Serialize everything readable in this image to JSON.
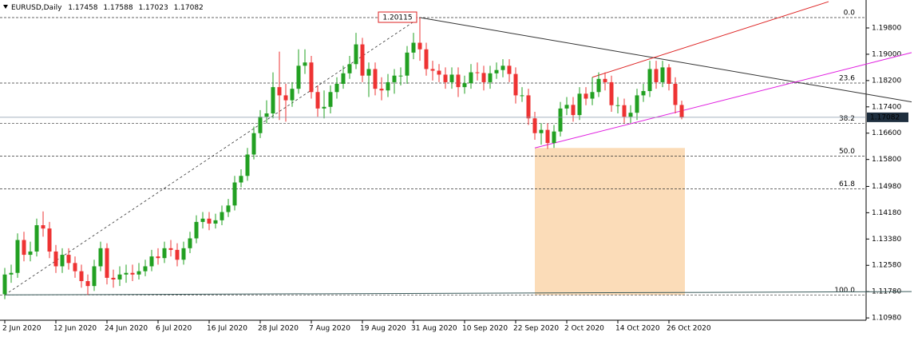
{
  "chart_data": {
    "type": "candlestick",
    "title": "EURUSD,Daily",
    "categories": [
      "2 Jun 2020",
      null,
      null,
      null,
      null,
      null,
      null,
      null,
      "12 Jun 2020",
      null,
      null,
      null,
      null,
      null,
      null,
      null,
      "24 Jun 2020",
      null,
      null,
      null,
      null,
      null,
      null,
      null,
      "6 Jul 2020",
      null,
      null,
      null,
      null,
      null,
      null,
      null,
      "16 Jul 2020",
      null,
      null,
      null,
      null,
      null,
      null,
      null,
      "28 Jul 2020",
      null,
      null,
      null,
      null,
      null,
      null,
      null,
      "7 Aug 2020",
      null,
      null,
      null,
      null,
      null,
      null,
      null,
      "19 Aug 2020",
      null,
      null,
      null,
      null,
      null,
      null,
      null,
      "31 Aug 2020",
      null,
      null,
      null,
      null,
      null,
      null,
      null,
      "10 Sep 2020",
      null,
      null,
      null,
      null,
      null,
      null,
      null,
      "22 Sep 2020",
      null,
      null,
      null,
      null,
      null,
      null,
      null,
      "2 Oct 2020",
      null,
      null,
      null,
      null,
      null,
      null,
      null,
      "14 Oct 2020",
      null,
      null,
      null,
      null,
      null,
      null,
      null,
      "26 Oct 2020",
      null,
      null
    ],
    "open": [
      1.117,
      1.123,
      1.1235,
      1.1335,
      1.129,
      1.13,
      1.138,
      1.137,
      1.13,
      1.1255,
      1.129,
      1.1265,
      1.124,
      1.121,
      1.1195,
      1.1255,
      1.131,
      1.122,
      1.1215,
      1.123,
      1.1235,
      1.123,
      1.124,
      1.1255,
      1.1285,
      1.128,
      1.131,
      1.1305,
      1.1275,
      1.131,
      1.134,
      1.139,
      1.14,
      1.1385,
      1.1395,
      1.142,
      1.144,
      1.151,
      1.153,
      1.1595,
      1.166,
      1.171,
      1.172,
      1.18,
      1.1775,
      1.176,
      1.1795,
      1.1865,
      1.1875,
      1.1785,
      1.1735,
      1.174,
      1.1785,
      1.181,
      1.1842,
      1.187,
      1.193,
      1.1835,
      1.1855,
      1.1795,
      1.179,
      1.1815,
      1.1835,
      1.1835,
      1.1905,
      1.1935,
      1.1915,
      1.1855,
      1.185,
      1.1838,
      1.1815,
      1.1838,
      1.18,
      1.1812,
      1.1845,
      1.1843,
      1.1815,
      1.1842,
      1.1852,
      1.1865,
      1.184,
      1.1775,
      1.1775,
      1.1705,
      1.166,
      1.167,
      1.163,
      1.1665,
      1.1735,
      1.1746,
      1.1715,
      1.178,
      1.1765,
      1.1785,
      1.1825,
      1.1815,
      1.1745,
      1.1745,
      1.171,
      1.1722,
      1.1775,
      1.1788,
      1.1855,
      1.1815,
      1.186,
      1.181,
      1.17458
    ],
    "high": [
      1.125,
      1.126,
      1.1355,
      1.136,
      1.133,
      1.14,
      1.1422,
      1.139,
      1.132,
      1.131,
      1.131,
      1.1285,
      1.126,
      1.123,
      1.1275,
      1.133,
      1.1325,
      1.1245,
      1.1255,
      1.126,
      1.126,
      1.1265,
      1.1275,
      1.1305,
      1.131,
      1.133,
      1.1335,
      1.1325,
      1.133,
      1.136,
      1.141,
      1.142,
      1.142,
      1.1415,
      1.144,
      1.146,
      1.153,
      1.155,
      1.1615,
      1.168,
      1.173,
      1.176,
      1.1845,
      1.1908,
      1.181,
      1.1815,
      1.1915,
      1.1915,
      1.1895,
      1.1805,
      1.179,
      1.1805,
      1.183,
      1.1865,
      1.1895,
      1.1965,
      1.195,
      1.1875,
      1.1875,
      1.183,
      1.184,
      1.1855,
      1.186,
      1.1925,
      1.1965,
      1.20115,
      1.1935,
      1.188,
      1.187,
      1.186,
      1.186,
      1.186,
      1.1835,
      1.187,
      1.1875,
      1.1865,
      1.1865,
      1.1875,
      1.1885,
      1.1885,
      1.186,
      1.18,
      1.1795,
      1.1725,
      1.169,
      1.169,
      1.1685,
      1.1755,
      1.177,
      1.177,
      1.18,
      1.18,
      1.183,
      1.1845,
      1.1845,
      1.1835,
      1.177,
      1.1765,
      1.1745,
      1.1795,
      1.181,
      1.188,
      1.188,
      1.188,
      1.187,
      1.183,
      1.17588
    ],
    "low": [
      1.1155,
      1.1205,
      1.122,
      1.127,
      1.127,
      1.1285,
      1.1345,
      1.128,
      1.1235,
      1.1235,
      1.1245,
      1.122,
      1.119,
      1.1168,
      1.118,
      1.124,
      1.12,
      1.119,
      1.1195,
      1.1205,
      1.121,
      1.1215,
      1.1225,
      1.124,
      1.126,
      1.1265,
      1.1285,
      1.1255,
      1.126,
      1.1295,
      1.1325,
      1.137,
      1.1365,
      1.137,
      1.138,
      1.1405,
      1.1425,
      1.1495,
      1.1515,
      1.158,
      1.1645,
      1.169,
      1.1705,
      1.17,
      1.1695,
      1.174,
      1.178,
      1.184,
      1.1765,
      1.171,
      1.1705,
      1.172,
      1.1765,
      1.1795,
      1.1825,
      1.1855,
      1.1815,
      1.177,
      1.1775,
      1.176,
      1.177,
      1.178,
      1.1805,
      1.181,
      1.1885,
      1.188,
      1.1835,
      1.182,
      1.1815,
      1.1795,
      1.1795,
      1.177,
      1.178,
      1.1795,
      1.182,
      1.179,
      1.1795,
      1.1825,
      1.183,
      1.1815,
      1.175,
      1.1755,
      1.1685,
      1.164,
      1.1625,
      1.1612,
      1.1615,
      1.165,
      1.1715,
      1.1695,
      1.17,
      1.1745,
      1.1745,
      1.177,
      1.179,
      1.1725,
      1.172,
      1.169,
      1.169,
      1.17,
      1.1755,
      1.177,
      1.1795,
      1.18,
      1.179,
      1.172,
      1.17023
    ],
    "close": [
      1.123,
      1.1235,
      1.1335,
      1.129,
      1.13,
      1.138,
      1.137,
      1.13,
      1.1255,
      1.129,
      1.1265,
      1.124,
      1.121,
      1.1195,
      1.1255,
      1.131,
      1.122,
      1.1215,
      1.123,
      1.1235,
      1.123,
      1.124,
      1.1255,
      1.1285,
      1.128,
      1.131,
      1.1305,
      1.1275,
      1.131,
      1.134,
      1.139,
      1.14,
      1.1385,
      1.1395,
      1.142,
      1.144,
      1.151,
      1.153,
      1.1595,
      1.166,
      1.171,
      1.172,
      1.18,
      1.1775,
      1.176,
      1.1795,
      1.1865,
      1.1875,
      1.1785,
      1.1735,
      1.174,
      1.1785,
      1.181,
      1.1842,
      1.187,
      1.193,
      1.1835,
      1.1855,
      1.1795,
      1.179,
      1.1815,
      1.1835,
      1.1835,
      1.1905,
      1.1935,
      1.1915,
      1.1855,
      1.185,
      1.1838,
      1.1815,
      1.1838,
      1.18,
      1.1812,
      1.1845,
      1.1843,
      1.1815,
      1.1842,
      1.1852,
      1.1865,
      1.184,
      1.1775,
      1.1775,
      1.1705,
      1.166,
      1.167,
      1.163,
      1.1665,
      1.1735,
      1.1746,
      1.1715,
      1.178,
      1.1765,
      1.1785,
      1.1825,
      1.1815,
      1.1745,
      1.1745,
      1.171,
      1.1722,
      1.1775,
      1.1788,
      1.1855,
      1.1815,
      1.186,
      1.181,
      1.17458,
      1.17082
    ],
    "up_color": "#22a022",
    "down_color": "#ee3333",
    "ylim": [
      1.1091,
      1.2065
    ],
    "yticks": [
      {
        "value": 1.198,
        "label": "1.19800"
      },
      {
        "value": 1.19,
        "label": "1.19000"
      },
      {
        "value": 1.182,
        "label": "1.18200"
      },
      {
        "value": 1.174,
        "label": "1.17400"
      },
      {
        "value": 1.166,
        "label": "1.16600"
      },
      {
        "value": 1.158,
        "label": "1.15800"
      },
      {
        "value": 1.1498,
        "label": "1.14980"
      },
      {
        "value": 1.1418,
        "label": "1.14180"
      },
      {
        "value": 1.1338,
        "label": "1.13380"
      },
      {
        "value": 1.1258,
        "label": "1.12580"
      },
      {
        "value": 1.1178,
        "label": "1.11780"
      },
      {
        "value": 1.1098,
        "label": "1.10980"
      }
    ],
    "fib": {
      "high": 1.20115,
      "low": 1.1168,
      "color": "#333333",
      "ratios": [
        {
          "value": 0,
          "label": "0.0"
        },
        {
          "value": 23.6,
          "label": "23.6"
        },
        {
          "value": 38.2,
          "label": "38.2"
        },
        {
          "value": 50,
          "label": "50.0"
        },
        {
          "value": 61.8,
          "label": "61.8"
        },
        {
          "value": 100,
          "label": "100.0"
        }
      ]
    },
    "trendlines": [
      {
        "color": "#333333",
        "x": [
          65,
          142
        ],
        "y": [
          1.20115,
          1.1755
        ]
      },
      {
        "color": "#dd2222",
        "x": [
          92,
          129
        ],
        "y": [
          1.183,
          1.206
        ]
      },
      {
        "color": "#e020e0",
        "x": [
          83,
          142
        ],
        "y": [
          1.1615,
          1.1905
        ]
      },
      {
        "color": "#3a5a5a",
        "x": [
          0,
          142
        ],
        "y": [
          1.1168,
          1.1178
        ]
      }
    ],
    "zone": {
      "color": "#fbdcb8",
      "x": [
        83,
        106.5
      ],
      "y": [
        1.1615,
        1.1168
      ]
    },
    "last_price_color": "#1e2e3e"
  }
}
